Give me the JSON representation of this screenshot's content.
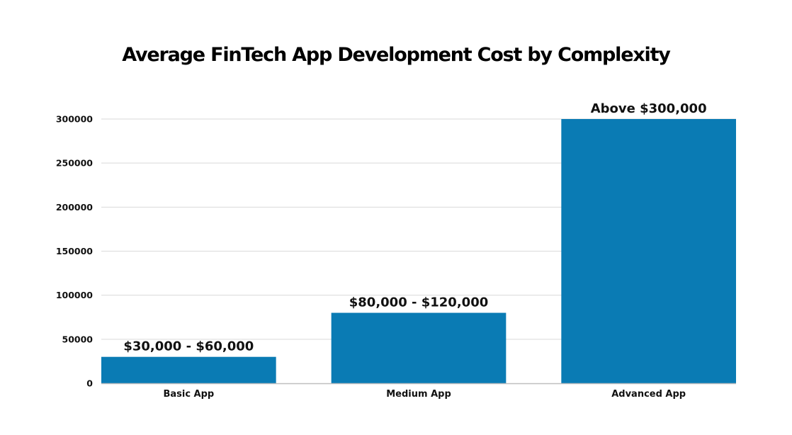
{
  "chart_data": {
    "type": "bar",
    "title": "Average FinTech App Development Cost by Complexity",
    "categories": [
      "Basic App",
      "Medium App",
      "Advanced App"
    ],
    "values": [
      30000,
      80000,
      300000
    ],
    "data_labels": [
      "$30,000 - $60,000",
      "$80,000 - $120,000",
      "Above $300,000"
    ],
    "xlabel": "",
    "ylabel": "",
    "ylim": [
      0,
      300000
    ],
    "yticks": [
      0,
      50000,
      100000,
      150000,
      200000,
      250000,
      300000
    ],
    "grid": true,
    "bar_color": "#0a7bb4"
  }
}
